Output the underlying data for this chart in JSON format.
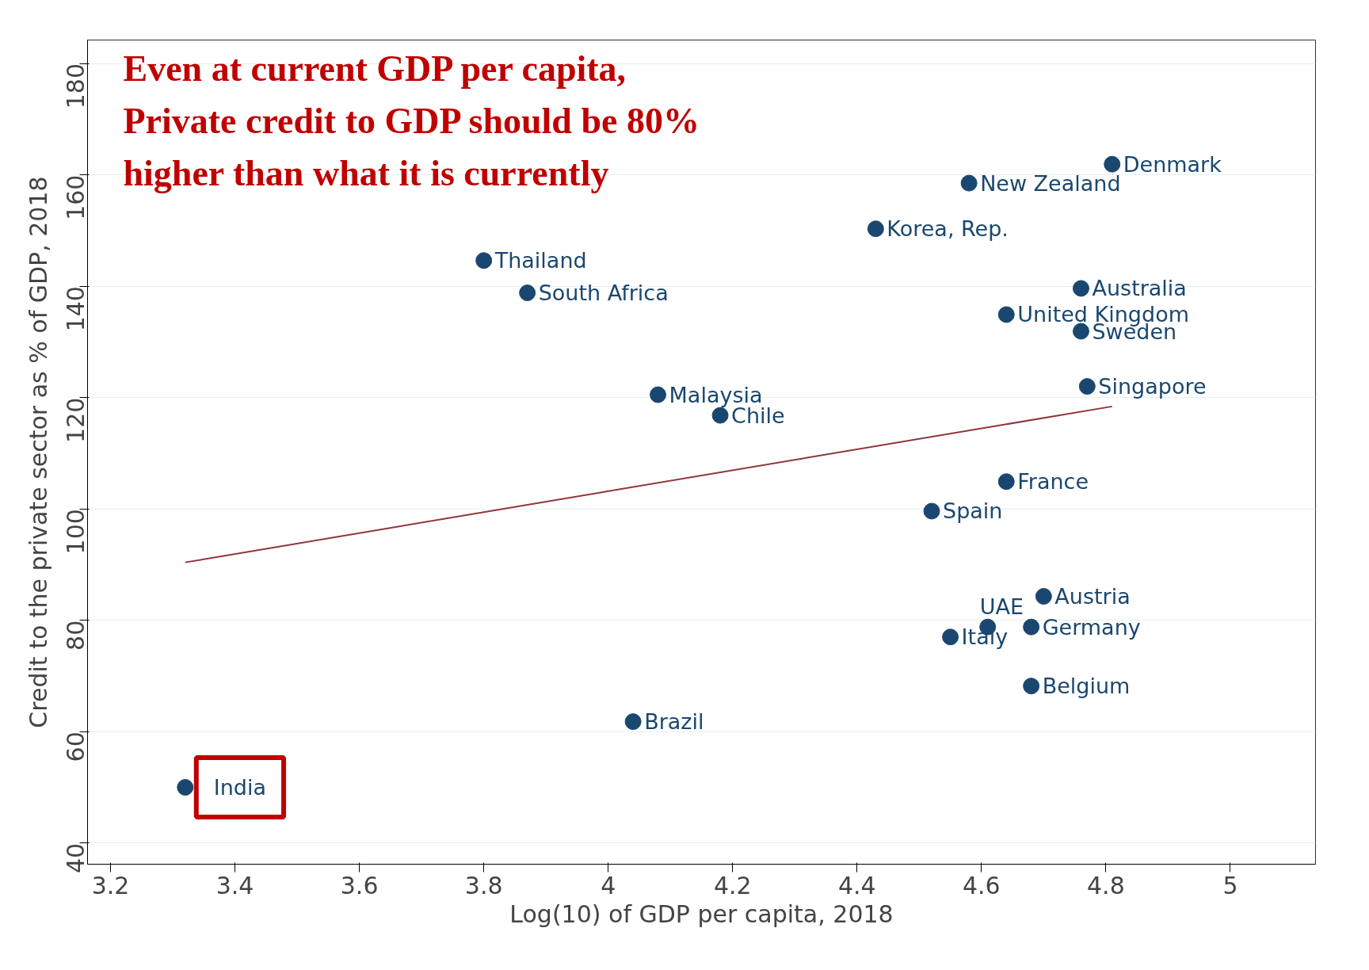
{
  "chart_data": {
    "type": "scatter",
    "xlabel": "Log(10) of GDP per capita, 2018",
    "ylabel": "Credit to the private sector as % of GDP, 2018",
    "xlim": [
      3.163,
      5.137
    ],
    "ylim": [
      36.2,
      184.2
    ],
    "xticks": [
      3.2,
      3.4,
      3.6,
      3.8,
      4,
      4.2,
      4.4,
      4.6,
      4.8,
      5
    ],
    "yticks": [
      40,
      60,
      80,
      100,
      120,
      140,
      160,
      180
    ],
    "grid": "y",
    "marker": "circle",
    "series": [
      {
        "color": "#1a476f",
        "x": [
          3.32,
          4.04,
          3.8,
          3.87,
          4.08,
          4.18,
          4.43,
          4.58,
          4.81,
          4.76,
          4.64,
          4.76,
          4.77,
          4.64,
          4.52,
          4.7,
          4.61,
          4.68,
          4.55,
          4.68
        ],
        "values": [
          50,
          61.8,
          144.6,
          138.8,
          120.5,
          116.8,
          150.3,
          158.5,
          161.9,
          139.6,
          134.9,
          131.9,
          122,
          104.9,
          99.6,
          84.3,
          78.8,
          78.8,
          77,
          68.2
        ]
      },
      {
        "type": "line",
        "marker": "none",
        "color": "#90353b",
        "x": [
          3.32,
          4.81
        ],
        "values": [
          90.4,
          118.4
        ]
      }
    ],
    "annotations": [
      "Even at current GDP per capita,\nPrivate credit to GDP should be 80%\nhigher than what it is currently",
      {
        "text": "India",
        "x": 3.32,
        "y": 50
      },
      {
        "text": "Brazil",
        "x": 4.04,
        "y": 61.8
      },
      {
        "text": "Thailand",
        "x": 3.8,
        "y": 144.6
      },
      {
        "text": "South Africa",
        "x": 3.87,
        "y": 138.8
      },
      {
        "text": "Malaysia",
        "x": 4.08,
        "y": 120.5
      },
      {
        "text": "Chile",
        "x": 4.18,
        "y": 116.8
      },
      {
        "text": "Korea, Rep.",
        "x": 4.43,
        "y": 150.3
      },
      {
        "text": "New Zealand",
        "x": 4.58,
        "y": 158.5
      },
      {
        "text": "Denmark",
        "x": 4.81,
        "y": 161.9
      },
      {
        "text": "Australia",
        "x": 4.76,
        "y": 139.6
      },
      {
        "text": "United Kingdom",
        "x": 4.64,
        "y": 134.9
      },
      {
        "text": "Sweden",
        "x": 4.76,
        "y": 131.9
      },
      {
        "text": "Singapore",
        "x": 4.77,
        "y": 122
      },
      {
        "text": "France",
        "x": 4.64,
        "y": 104.9
      },
      {
        "text": "Spain",
        "x": 4.52,
        "y": 99.6
      },
      {
        "text": "Austria",
        "x": 4.7,
        "y": 84.3
      },
      {
        "text": "UAE",
        "x": 4.61,
        "y": 78.8
      },
      {
        "text": "Germany",
        "x": 4.68,
        "y": 78.8
      },
      {
        "text": "Italy",
        "x": 4.55,
        "y": 77
      },
      {
        "text": "Belgium",
        "x": 4.68,
        "y": 68.2
      }
    ]
  }
}
